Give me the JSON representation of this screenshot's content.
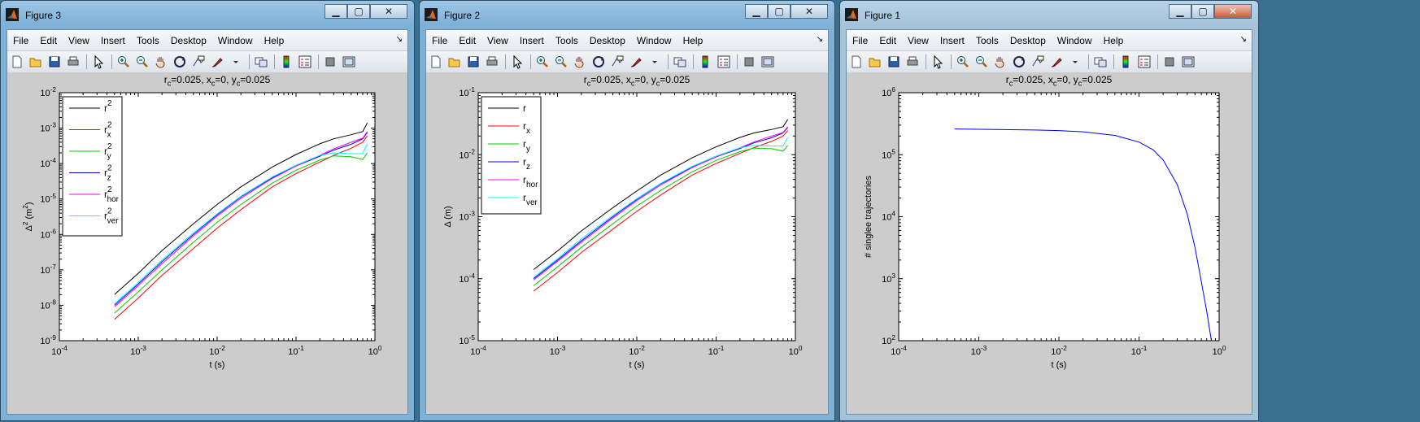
{
  "menu": [
    "File",
    "Edit",
    "View",
    "Insert",
    "Tools",
    "Desktop",
    "Window",
    "Help"
  ],
  "toolbar_icons": [
    "new-file-icon",
    "open-folder-icon",
    "save-icon",
    "print-icon",
    "sep",
    "pointer-icon",
    "sep",
    "zoom-in-icon",
    "zoom-out-icon",
    "pan-hand-icon",
    "rotate-3d-icon",
    "data-cursor-icon",
    "brush-icon",
    "brush-menu-icon",
    "sep",
    "link-plot-icon",
    "sep",
    "colorbar-icon",
    "legend-icon",
    "sep",
    "hide-plot-tools-icon",
    "show-plot-tools-icon"
  ],
  "windows": [
    {
      "id": "fig3",
      "title": "Figure 3",
      "active": true,
      "plot_title": "r_c=0.025, x_c=0, y_c=0.025",
      "ylabel": "Δ^2 (m^2)",
      "xlabel": "t (s)",
      "xticks": [
        "10^-4",
        "10^-3",
        "10^-2",
        "10^-1",
        "10^0"
      ],
      "yticks": [
        "10^-9",
        "10^-8",
        "10^-7",
        "10^-6",
        "10^-5",
        "10^-4",
        "10^-3",
        "10^-2"
      ],
      "legend": [
        "r^2",
        "r^2_x",
        "r^2_y",
        "r^2_z",
        "r^2_hor",
        "r^2_ver"
      ]
    },
    {
      "id": "fig2",
      "title": "Figure 2",
      "active": true,
      "plot_title": "r_c=0.025, x_c=0, y_c=0.025",
      "ylabel": "Δ (m)",
      "xlabel": "t (s)",
      "xticks": [
        "10^-4",
        "10^-3",
        "10^-2",
        "10^-1",
        "10^0"
      ],
      "yticks": [
        "10^-5",
        "10^-4",
        "10^-3",
        "10^-2",
        "10^-1"
      ],
      "legend": [
        "r",
        "r_x",
        "r_y",
        "r_z",
        "r_hor",
        "r_ver"
      ]
    },
    {
      "id": "fig1",
      "title": "Figure 1",
      "active": false,
      "plot_title": "r_c=0.025, x_c=0, y_c=0.025",
      "ylabel": "# singlee trajectories",
      "xlabel": "t (s)",
      "xticks": [
        "10^-4",
        "10^-3",
        "10^-2",
        "10^-1",
        "10^0"
      ],
      "yticks": [
        "10^2",
        "10^3",
        "10^4",
        "10^5",
        "10^6"
      ],
      "legend": []
    }
  ],
  "colors": {
    "r": "#000000",
    "r_x": "#ff0000",
    "r_y": "#00cc00",
    "r_z": "#0000ff",
    "r_hor": "#ff00ff",
    "r_ver": "#00ffff",
    "count": "#0000ff"
  },
  "chart_data": [
    {
      "type": "line",
      "chart": "Figure 3",
      "xscale": "log",
      "yscale": "log",
      "xlim": [
        0.0001,
        1
      ],
      "ylim": [
        1e-09,
        0.01
      ],
      "x": [
        0.0005,
        0.001,
        0.002,
        0.005,
        0.01,
        0.02,
        0.05,
        0.1,
        0.2,
        0.3,
        0.5,
        0.7,
        0.8
      ],
      "series": [
        {
          "name": "r^2",
          "values": [
            2e-08,
            8e-08,
            3.5e-07,
            2e-06,
            7e-06,
            2.2e-05,
            8e-05,
            0.00018,
            0.00036,
            0.0005,
            0.00065,
            0.0008,
            0.0014
          ]
        },
        {
          "name": "r^2_x",
          "values": [
            4e-09,
            1.6e-08,
            7e-08,
            4e-07,
            1.5e-06,
            5e-06,
            2.2e-05,
            5.2e-05,
            0.00011,
            0.00017,
            0.00027,
            0.0004,
            0.0006
          ]
        },
        {
          "name": "r^2_y",
          "values": [
            6e-09,
            2.4e-08,
            1e-07,
            6e-07,
            2.2e-06,
            7e-06,
            2.8e-05,
            6.5e-05,
            0.000125,
            0.000165,
            0.000155,
            0.00013,
            0.0002
          ]
        },
        {
          "name": "r^2_z",
          "values": [
            1e-08,
            4e-08,
            1.7e-07,
            1e-06,
            3.6e-06,
            1.15e-05,
            4e-05,
            8.5e-05,
            0.00016,
            0.00024,
            0.00035,
            0.0005,
            0.00075
          ]
        },
        {
          "name": "r^2_hor",
          "values": [
            9e-09,
            3.6e-08,
            1.5e-07,
            9e-07,
            3.3e-06,
            1.05e-05,
            3.8e-05,
            8.5e-05,
            0.00017,
            0.00026,
            0.0004,
            0.00052,
            0.0008
          ]
        },
        {
          "name": "r^2_ver",
          "values": [
            1.1e-08,
            4.4e-08,
            1.9e-07,
            1.1e-06,
            3.8e-06,
            1.2e-05,
            4.2e-05,
            9e-05,
            0.00017,
            0.0002,
            0.00019,
            0.00019,
            0.00036
          ]
        }
      ]
    },
    {
      "type": "line",
      "chart": "Figure 2",
      "xscale": "log",
      "yscale": "log",
      "xlim": [
        0.0001,
        1
      ],
      "ylim": [
        1e-05,
        0.1
      ],
      "x": [
        0.0005,
        0.001,
        0.002,
        0.005,
        0.01,
        0.02,
        0.05,
        0.1,
        0.2,
        0.3,
        0.5,
        0.7,
        0.8
      ],
      "series": [
        {
          "name": "r",
          "values": [
            0.00014,
            0.00028,
            0.00059,
            0.0014,
            0.0026,
            0.0047,
            0.0089,
            0.0134,
            0.019,
            0.0224,
            0.0255,
            0.0283,
            0.037
          ]
        },
        {
          "name": "r_x",
          "values": [
            6.3e-05,
            0.000126,
            0.000265,
            0.00063,
            0.00122,
            0.00224,
            0.0047,
            0.0072,
            0.0105,
            0.013,
            0.0164,
            0.02,
            0.0245
          ]
        },
        {
          "name": "r_y",
          "values": [
            7.7e-05,
            0.000155,
            0.00032,
            0.00077,
            0.00148,
            0.00265,
            0.0053,
            0.0081,
            0.0112,
            0.0128,
            0.0125,
            0.0114,
            0.014
          ]
        },
        {
          "name": "r_z",
          "values": [
            0.0001,
            0.0002,
            0.00041,
            0.001,
            0.0019,
            0.0034,
            0.0063,
            0.0092,
            0.0126,
            0.0155,
            0.0187,
            0.0224,
            0.0274
          ]
        },
        {
          "name": "r_hor",
          "values": [
            9.5e-05,
            0.00019,
            0.00039,
            0.00095,
            0.00182,
            0.00324,
            0.0062,
            0.0092,
            0.013,
            0.016,
            0.02,
            0.0228,
            0.0283
          ]
        },
        {
          "name": "r_ver",
          "values": [
            0.000105,
            0.00021,
            0.00044,
            0.00105,
            0.00195,
            0.00346,
            0.0065,
            0.0095,
            0.013,
            0.0141,
            0.0138,
            0.0138,
            0.019
          ]
        }
      ]
    },
    {
      "type": "line",
      "chart": "Figure 1",
      "xscale": "log",
      "yscale": "log",
      "xlim": [
        0.0001,
        1
      ],
      "ylim": [
        100,
        1000000
      ],
      "x": [
        0.0005,
        0.001,
        0.002,
        0.005,
        0.01,
        0.02,
        0.05,
        0.1,
        0.15,
        0.2,
        0.3,
        0.4,
        0.5,
        0.6,
        0.7,
        0.8
      ],
      "series": [
        {
          "name": "count",
          "values": [
            260000,
            257000,
            254000,
            250000,
            245000,
            234000,
            205000,
            160000,
            120000,
            82000,
            33000,
            11000,
            3200,
            900,
            300,
            100
          ]
        }
      ]
    }
  ]
}
